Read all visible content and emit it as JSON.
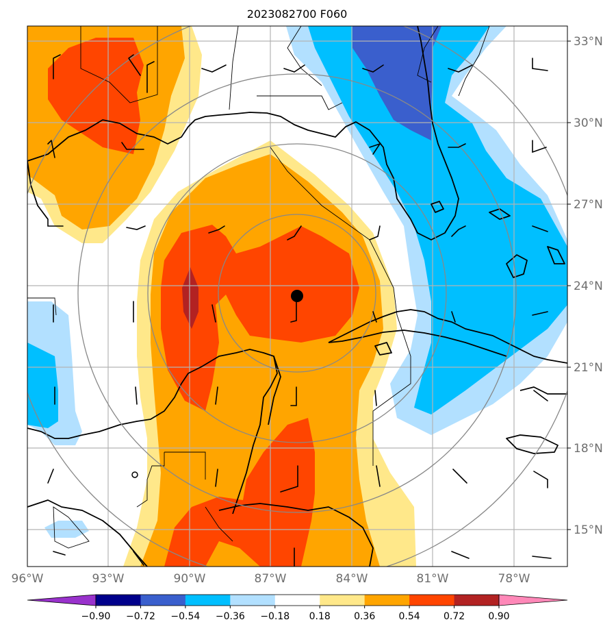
{
  "title": "2023082700 F060",
  "lat_ticks": [
    "33°N",
    "30°N",
    "27°N",
    "24°N",
    "21°N",
    "18°N",
    "15°N"
  ],
  "lon_ticks": [
    "96°W",
    "93°W",
    "90°W",
    "87°W",
    "84°W",
    "81°W",
    "78°W"
  ],
  "colorbar": {
    "ticks": [
      "−0.90",
      "−0.72",
      "−0.54",
      "−0.36",
      "−0.18",
      "0.18",
      "0.36",
      "0.54",
      "0.72",
      "0.90"
    ],
    "colors": [
      "#9932CC",
      "#00008B",
      "#3A5FCD",
      "#00BFFF",
      "#B2E0FF",
      "#FFFFFF",
      "#FFE88A",
      "#FFA500",
      "#FF4500",
      "#B22222",
      "#FF88B8"
    ]
  },
  "map": {
    "lon_range": [
      -96,
      -76
    ],
    "lat_range": [
      13.7,
      33.8
    ],
    "storm_center": {
      "lon": -85.9,
      "lat": 23.6
    },
    "range_rings": true,
    "grid": true
  }
}
